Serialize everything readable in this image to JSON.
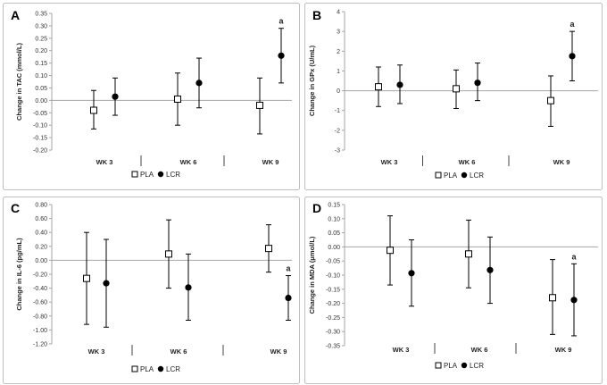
{
  "chart_data": [
    {
      "type": "scatter",
      "panel_label": "A",
      "ylabel": "Change in TAC (mmol/L)",
      "ylim": [
        -0.2,
        0.35
      ],
      "yticks": [
        "0.35",
        "0.30",
        "0.25",
        "0.20",
        "0.15",
        "0.10",
        "0.05",
        "0.00",
        "-0.05",
        "-0.10",
        "-0.15",
        "-0.20"
      ],
      "categories": [
        "WK 3",
        "WK 6",
        "WK 9"
      ],
      "series": [
        {
          "name": "PLA",
          "marker": "open-square",
          "values": [
            -0.04,
            0.005,
            -0.02
          ],
          "lower": [
            -0.115,
            -0.1,
            -0.135
          ],
          "upper": [
            0.04,
            0.11,
            0.09
          ]
        },
        {
          "name": "LCR",
          "marker": "filled-circle",
          "values": [
            0.015,
            0.07,
            0.18
          ],
          "lower": [
            -0.06,
            -0.03,
            0.07
          ],
          "upper": [
            0.09,
            0.17,
            0.29
          ]
        }
      ],
      "annotations": [
        {
          "text": "a",
          "category": "WK 9",
          "series": "LCR"
        }
      ],
      "legend": "bottom-center"
    },
    {
      "type": "scatter",
      "panel_label": "B",
      "ylabel": "Change in GPx (U/mL)",
      "ylim": [
        -3,
        4
      ],
      "yticks": [
        "4",
        "3",
        "2",
        "1",
        "0",
        "-1",
        "-2",
        "-3"
      ],
      "categories": [
        "WK 3",
        "WK 6",
        "WK 9"
      ],
      "series": [
        {
          "name": "PLA",
          "marker": "open-square",
          "values": [
            0.2,
            0.1,
            -0.5
          ],
          "lower": [
            -0.8,
            -0.9,
            -1.8
          ],
          "upper": [
            1.2,
            1.05,
            0.75
          ]
        },
        {
          "name": "LCR",
          "marker": "filled-circle",
          "values": [
            0.3,
            0.4,
            1.75
          ],
          "lower": [
            -0.65,
            -0.5,
            0.5
          ],
          "upper": [
            1.3,
            1.4,
            3.0
          ]
        }
      ],
      "annotations": [
        {
          "text": "a",
          "category": "WK 9",
          "series": "LCR"
        }
      ],
      "legend": "bottom-center"
    },
    {
      "type": "scatter",
      "panel_label": "C",
      "ylabel": "Change in IL-6 (pg/mL)",
      "ylim": [
        -1.2,
        0.8
      ],
      "yticks": [
        "0.80",
        "0.60",
        "0.40",
        "0.20",
        "0.00",
        "-0.20",
        "-0.40",
        "-0.60",
        "-0.80",
        "-1.00",
        "-1.20"
      ],
      "categories": [
        "WK 3",
        "WK 6",
        "WK 9"
      ],
      "series": [
        {
          "name": "PLA",
          "marker": "open-square",
          "values": [
            -0.26,
            0.09,
            0.17
          ],
          "lower": [
            -0.92,
            -0.4,
            -0.17
          ],
          "upper": [
            0.4,
            0.58,
            0.51
          ]
        },
        {
          "name": "LCR",
          "marker": "filled-circle",
          "values": [
            -0.33,
            -0.39,
            -0.54
          ],
          "lower": [
            -0.96,
            -0.86,
            -0.86
          ],
          "upper": [
            0.3,
            0.09,
            -0.22
          ]
        }
      ],
      "annotations": [
        {
          "text": "a",
          "category": "WK 9",
          "series": "LCR"
        }
      ],
      "legend": "bottom-center"
    },
    {
      "type": "scatter",
      "panel_label": "D",
      "ylabel": "Change in MDA (μmol/L)",
      "ylim": [
        -0.35,
        0.15
      ],
      "yticks": [
        "0.15",
        "0.10",
        "0.05",
        "0.00",
        "-0.05",
        "-0.10",
        "-0.15",
        "-0.20",
        "-0.25",
        "-0.30",
        "-0.35"
      ],
      "categories": [
        "WK 3",
        "WK 6",
        "WK 9"
      ],
      "series": [
        {
          "name": "PLA",
          "marker": "open-square",
          "values": [
            -0.012,
            -0.025,
            -0.18
          ],
          "lower": [
            -0.135,
            -0.145,
            -0.31
          ],
          "upper": [
            0.11,
            0.095,
            -0.045
          ]
        },
        {
          "name": "LCR",
          "marker": "filled-circle",
          "values": [
            -0.093,
            -0.082,
            -0.188
          ],
          "lower": [
            -0.21,
            -0.2,
            -0.315
          ],
          "upper": [
            0.025,
            0.035,
            -0.06
          ]
        }
      ],
      "annotations": [
        {
          "text": "a",
          "category": "WK 9",
          "series": "LCR"
        }
      ],
      "legend": "bottom-center"
    }
  ],
  "colors": {
    "frame": "#bfbfbf",
    "axis": "#a6a6a6",
    "zero_line": "#a6a6a6",
    "marks": "#000000"
  }
}
